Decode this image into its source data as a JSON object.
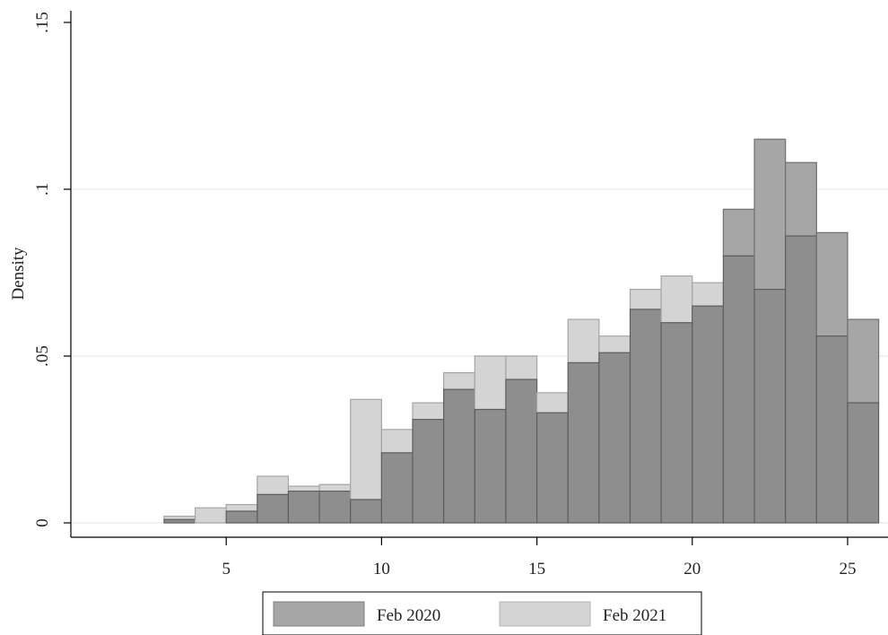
{
  "chart_data": {
    "type": "bar",
    "subtype": "overlaid-histogram",
    "ylabel": "Density",
    "xlabel": "",
    "title": "",
    "xlim": [
      0,
      26.3
    ],
    "ylim": [
      0,
      0.15
    ],
    "x_ticks": [
      5,
      10,
      15,
      20,
      25
    ],
    "x_tick_labels": [
      "5",
      "10",
      "15",
      "20",
      "25"
    ],
    "y_ticks": [
      0,
      0.05,
      0.1,
      0.15
    ],
    "y_tick_labels": [
      "0",
      ".05",
      ".1",
      ".15"
    ],
    "grid": "horizontal",
    "legend_position": "bottom",
    "bin_width": 1,
    "bin_starts": [
      3.0,
      4.0,
      5.0,
      6.0,
      7.0,
      8.0,
      9.0,
      10.0,
      11.0,
      12.0,
      13.0,
      14.0,
      15.0,
      16.0,
      17.0,
      18.0,
      19.0,
      20.0,
      21.0,
      22.0,
      23.0,
      24.0,
      25.0
    ],
    "series": [
      {
        "name": "Feb 2020",
        "color": "#a6a6a6",
        "values": [
          0.001,
          0.0,
          0.0035,
          0.0085,
          0.0095,
          0.0095,
          0.007,
          0.021,
          0.031,
          0.04,
          0.034,
          0.043,
          0.033,
          0.048,
          0.051,
          0.064,
          0.06,
          0.065,
          0.094,
          0.115,
          0.108,
          0.087,
          0.061
        ]
      },
      {
        "name": "Feb 2021",
        "color": "#d4d4d4",
        "values": [
          0.002,
          0.0045,
          0.0055,
          0.014,
          0.011,
          0.0115,
          0.037,
          0.028,
          0.036,
          0.045,
          0.05,
          0.05,
          0.039,
          0.061,
          0.056,
          0.07,
          0.074,
          0.072,
          0.08,
          0.07,
          0.086,
          0.056,
          0.036
        ]
      }
    ],
    "overlap_color": "#8e8e8e"
  }
}
